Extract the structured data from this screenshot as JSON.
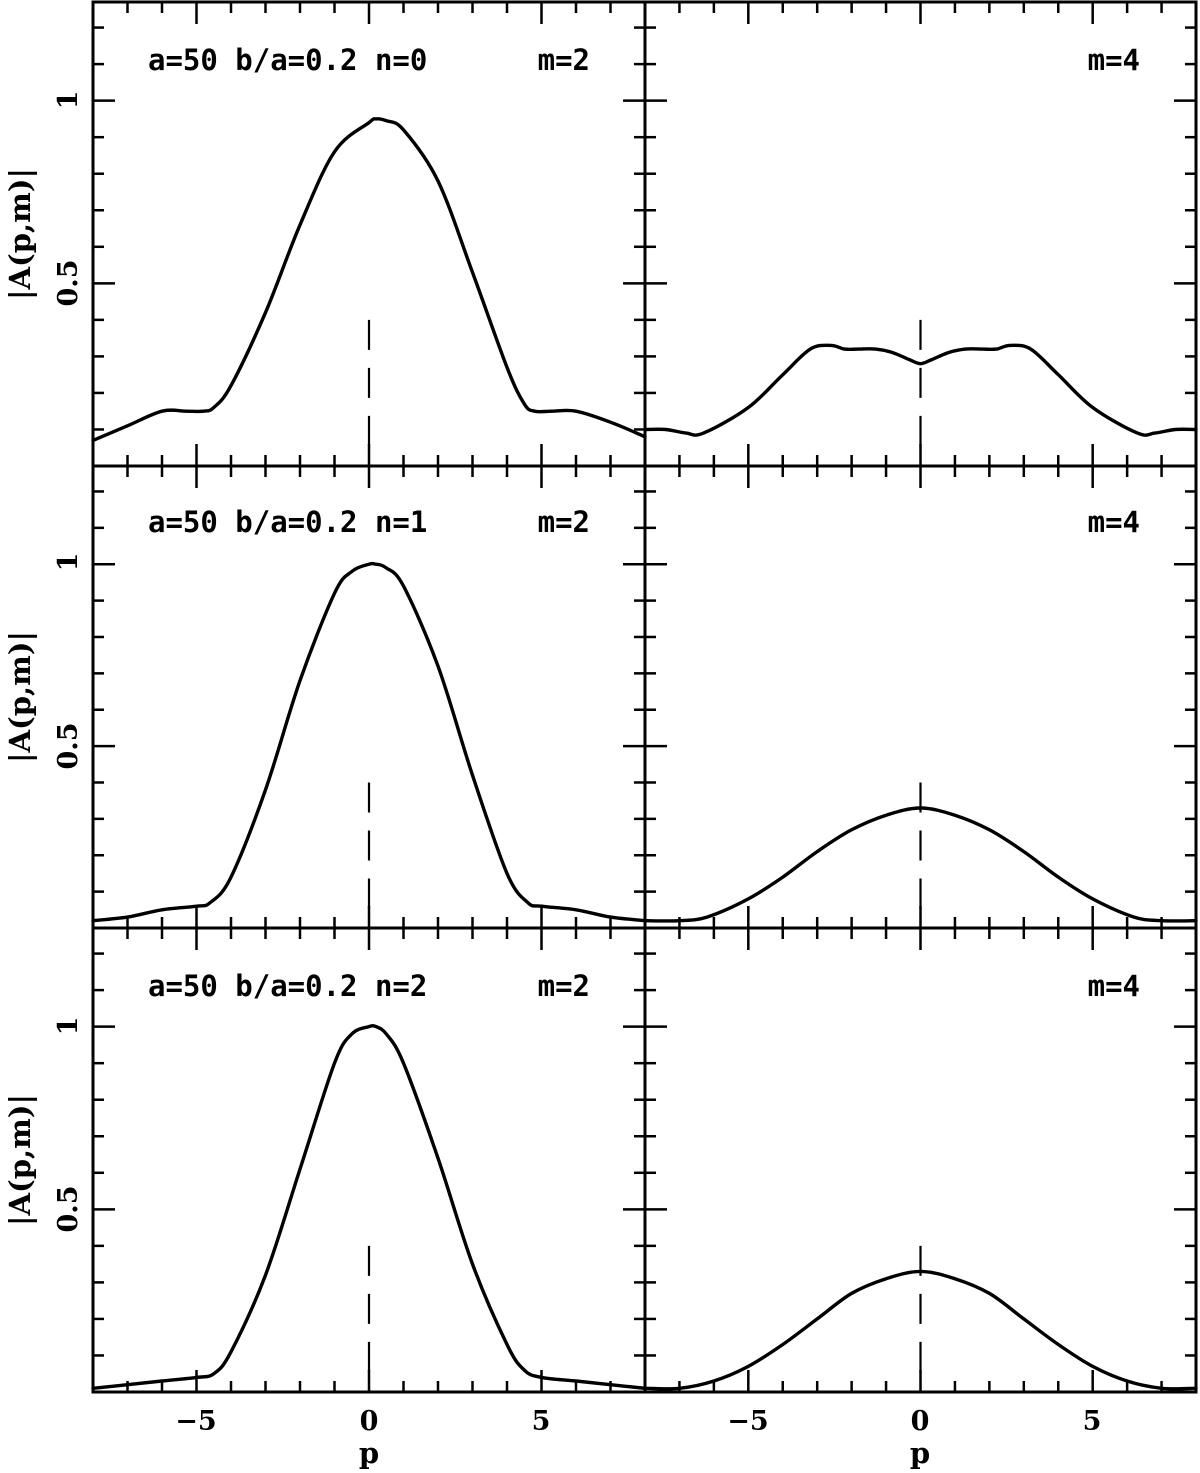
{
  "chart_data": {
    "type": "line",
    "layout": "3 rows x 2 columns, shared axes",
    "xlabel": "p",
    "ylabel": "|A(p,m)|",
    "xlim": [
      -8,
      8
    ],
    "ylim": [
      0,
      1.27
    ],
    "x_ticks": [
      -5,
      0,
      5
    ],
    "x_tick_labels": [
      "−5",
      "0",
      "5"
    ],
    "y_ticks": [
      0.5,
      1
    ],
    "y_tick_labels": [
      "0.5",
      "1"
    ],
    "reference_line": {
      "x": 0,
      "y_from": 0,
      "y_to": 0.4,
      "style": "dashed"
    },
    "panels": [
      {
        "row": 0,
        "col": 0,
        "label": "a=50 b/a=0.2 n=0",
        "m_label": "m=2",
        "x": [
          -8,
          -7,
          -6,
          -5.3,
          -4.8,
          -4.5,
          -4,
          -3,
          -2,
          -1,
          0,
          0.2,
          0.5,
          1,
          2,
          3,
          4,
          4.5,
          4.8,
          5.3,
          6,
          7,
          8
        ],
        "y": [
          0.07,
          0.11,
          0.15,
          0.15,
          0.15,
          0.16,
          0.22,
          0.42,
          0.66,
          0.86,
          0.94,
          0.95,
          0.945,
          0.92,
          0.78,
          0.53,
          0.27,
          0.17,
          0.15,
          0.15,
          0.15,
          0.12,
          0.08
        ]
      },
      {
        "row": 0,
        "col": 1,
        "label": "",
        "m_label": "m=4",
        "x": [
          -8,
          -7.4,
          -6.8,
          -6.3,
          -5,
          -4,
          -3.2,
          -2.6,
          -2.2,
          -1.8,
          -1.3,
          -0.8,
          -0.3,
          0,
          0.3,
          0.8,
          1.3,
          1.8,
          2.2,
          2.6,
          3.2,
          4,
          5,
          6.3,
          6.8,
          7.4,
          8
        ],
        "y": [
          0.1,
          0.1,
          0.09,
          0.09,
          0.16,
          0.25,
          0.32,
          0.33,
          0.32,
          0.32,
          0.32,
          0.31,
          0.29,
          0.28,
          0.29,
          0.31,
          0.32,
          0.32,
          0.32,
          0.33,
          0.32,
          0.25,
          0.16,
          0.09,
          0.09,
          0.1,
          0.1
        ]
      },
      {
        "row": 1,
        "col": 0,
        "label": "a=50 b/a=0.2 n=1",
        "m_label": "m=2",
        "x": [
          -8,
          -7,
          -6,
          -5,
          -4.6,
          -4,
          -3,
          -2,
          -1,
          -0.5,
          0,
          0.2,
          0.5,
          1,
          2,
          3,
          4,
          4.6,
          5,
          6,
          7,
          8
        ],
        "y": [
          0.02,
          0.03,
          0.05,
          0.06,
          0.07,
          0.14,
          0.38,
          0.68,
          0.92,
          0.98,
          1.0,
          1.0,
          0.99,
          0.94,
          0.72,
          0.42,
          0.15,
          0.07,
          0.06,
          0.05,
          0.03,
          0.02
        ]
      },
      {
        "row": 1,
        "col": 1,
        "label": "",
        "m_label": "m=4",
        "x": [
          -8,
          -7,
          -6.2,
          -5,
          -4,
          -3,
          -2,
          -1,
          0,
          1,
          2,
          3,
          4,
          5,
          6.2,
          7,
          8
        ],
        "y": [
          0.02,
          0.02,
          0.03,
          0.08,
          0.14,
          0.21,
          0.27,
          0.31,
          0.33,
          0.31,
          0.27,
          0.21,
          0.14,
          0.08,
          0.03,
          0.02,
          0.02
        ]
      },
      {
        "row": 2,
        "col": 0,
        "label": "a=50 b/a=0.2 n=2",
        "m_label": "m=2",
        "x": [
          -8,
          -7,
          -6,
          -5,
          -4.5,
          -4,
          -3,
          -2,
          -1,
          -0.5,
          0,
          0.2,
          0.5,
          1,
          2,
          3,
          4,
          4.5,
          5,
          6,
          7,
          8
        ],
        "y": [
          0.01,
          0.02,
          0.03,
          0.04,
          0.05,
          0.11,
          0.32,
          0.61,
          0.9,
          0.98,
          1.0,
          1.0,
          0.98,
          0.9,
          0.64,
          0.35,
          0.13,
          0.06,
          0.04,
          0.03,
          0.02,
          0.01
        ]
      },
      {
        "row": 2,
        "col": 1,
        "label": "",
        "m_label": "m=4",
        "x": [
          -8,
          -7,
          -6,
          -5,
          -4,
          -3,
          -2,
          -1,
          0,
          1,
          2,
          3,
          4,
          5,
          6,
          7,
          8
        ],
        "y": [
          0.01,
          0.01,
          0.03,
          0.07,
          0.13,
          0.2,
          0.27,
          0.31,
          0.33,
          0.31,
          0.27,
          0.2,
          0.13,
          0.07,
          0.03,
          0.01,
          0.01
        ]
      }
    ]
  }
}
